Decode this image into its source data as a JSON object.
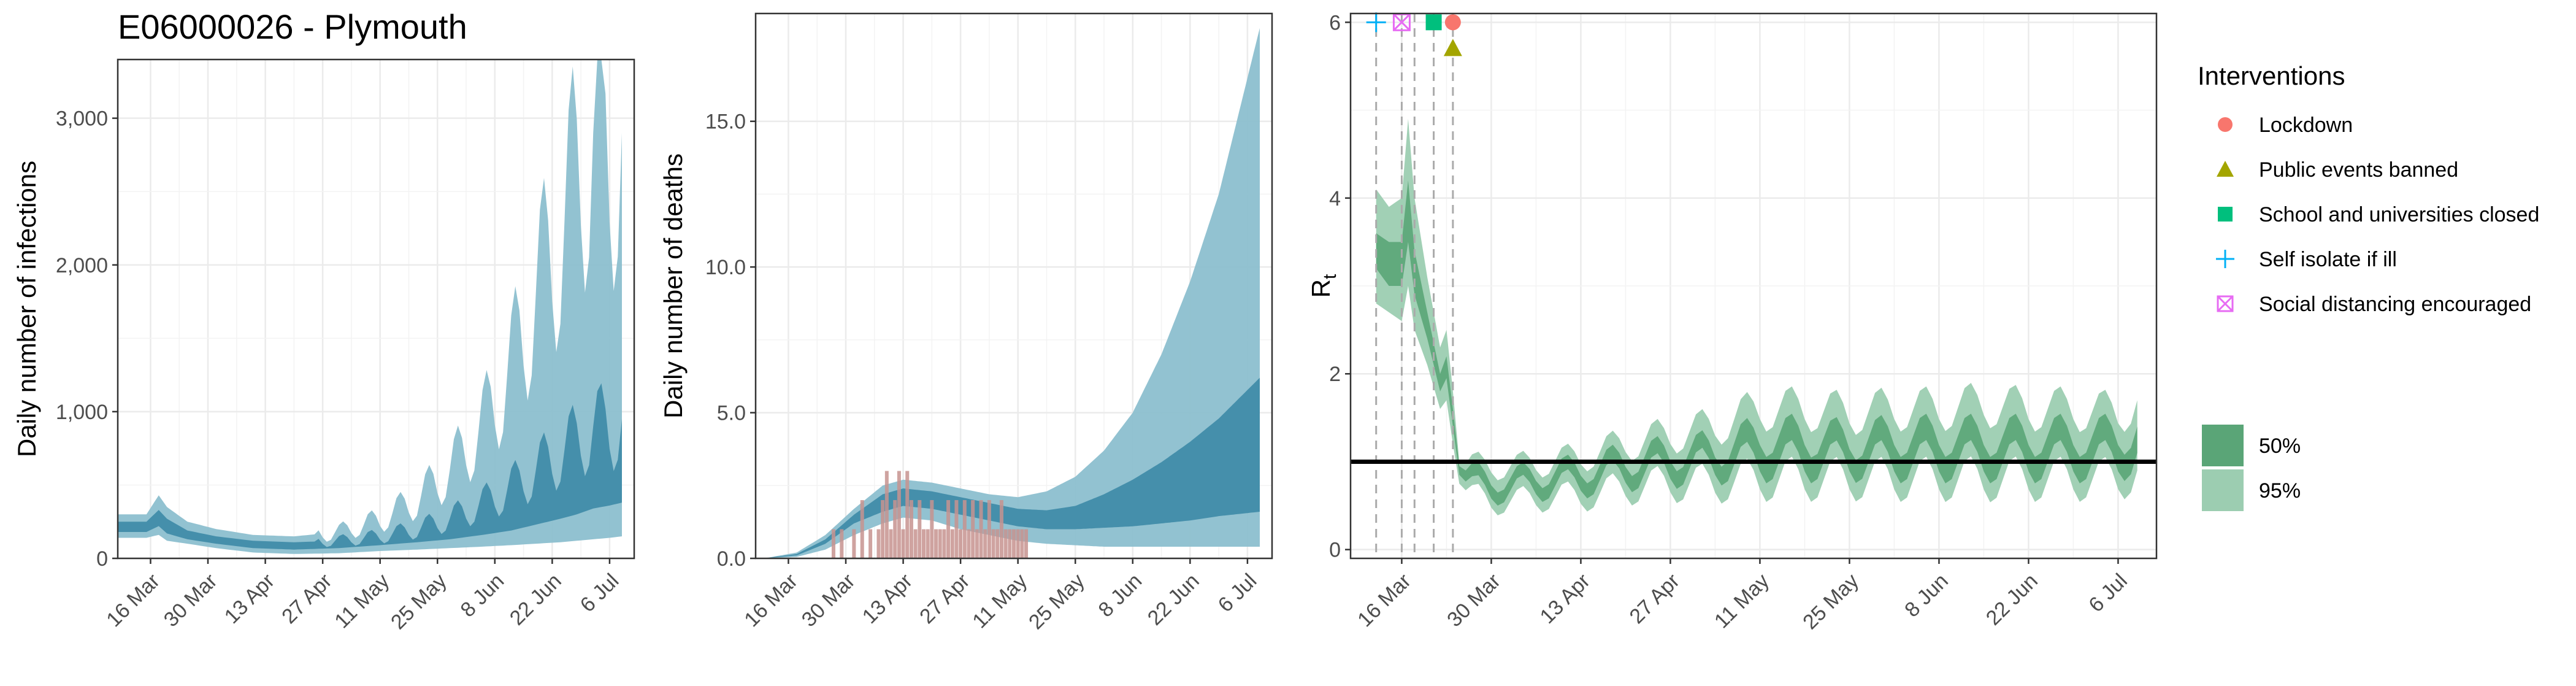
{
  "title": "E06000026 - Plymouth",
  "colors": {
    "blue_light": "#8cbfcf",
    "blue_dark": "#3d8aa6",
    "green_light": "#9ccdb1",
    "green_dark": "#5aa577",
    "observed_bar": "#c7938f",
    "lockdown": "#f8766d",
    "public_events": "#a3a500",
    "schools": "#00bf7d",
    "self_isolate": "#00b0f6",
    "social_distancing": "#e76bf3"
  },
  "x_tick_labels": [
    "16 Mar",
    "30 Mar",
    "13 Apr",
    "27 Apr",
    "11 May",
    "25 May",
    "8 Jun",
    "22 Jun",
    "6 Jul"
  ],
  "chart_data": [
    {
      "type": "area",
      "panel": "infections",
      "ylabel": "Daily number of infections",
      "xlabel": "",
      "x_range": [
        "2020-03-08",
        "2020-07-12"
      ],
      "ylim": [
        0,
        3400
      ],
      "y_ticks": [
        0,
        1000,
        2000,
        3000
      ],
      "y_tick_labels": [
        "0",
        "1,000",
        "2,000",
        "3,000"
      ],
      "grid": true,
      "start_date": "2020-03-08",
      "end_date": "2020-07-09",
      "series": [
        {
          "name": "95%",
          "x": [
            "2020-03-08",
            "2020-03-15",
            "2020-03-18",
            "2020-03-20",
            "2020-03-25",
            "2020-04-01",
            "2020-04-10",
            "2020-04-20",
            "2020-05-01",
            "2020-05-11",
            "2020-05-20",
            "2020-05-28",
            "2020-06-05",
            "2020-06-12",
            "2020-06-18",
            "2020-06-24",
            "2020-06-28",
            "2020-07-02",
            "2020-07-06",
            "2020-07-09"
          ],
          "lower": [
            140,
            140,
            160,
            120,
            100,
            70,
            40,
            30,
            35,
            50,
            60,
            70,
            80,
            90,
            100,
            110,
            120,
            130,
            140,
            150
          ],
          "upper": [
            300,
            300,
            430,
            350,
            250,
            200,
            160,
            150,
            180,
            260,
            400,
            600,
            900,
            1300,
            1800,
            2200,
            2600,
            2900,
            2700,
            2900
          ]
        },
        {
          "name": "50%",
          "x": [
            "2020-03-08",
            "2020-03-15",
            "2020-03-18",
            "2020-03-20",
            "2020-03-25",
            "2020-04-01",
            "2020-04-10",
            "2020-04-20",
            "2020-05-01",
            "2020-05-11",
            "2020-05-20",
            "2020-05-28",
            "2020-06-05",
            "2020-06-12",
            "2020-06-18",
            "2020-06-24",
            "2020-06-28",
            "2020-07-02",
            "2020-07-06",
            "2020-07-09"
          ],
          "lower": [
            180,
            180,
            220,
            170,
            130,
            100,
            70,
            60,
            70,
            90,
            110,
            130,
            160,
            190,
            230,
            270,
            300,
            340,
            360,
            380
          ],
          "upper": [
            250,
            250,
            330,
            270,
            190,
            150,
            120,
            110,
            120,
            150,
            200,
            270,
            370,
            480,
            600,
            720,
            800,
            900,
            880,
            950
          ]
        }
      ]
    },
    {
      "type": "area",
      "panel": "deaths",
      "ylabel": "Daily number of deaths",
      "xlabel": "",
      "x_range": [
        "2020-03-08",
        "2020-07-12"
      ],
      "ylim": [
        0,
        18.7
      ],
      "y_ticks": [
        0,
        5,
        10,
        15
      ],
      "y_tick_labels": [
        "0.0",
        "5.0",
        "10.0",
        "15.0"
      ],
      "grid": true,
      "series": [
        {
          "name": "95%",
          "x": [
            "2020-03-10",
            "2020-03-18",
            "2020-03-25",
            "2020-04-01",
            "2020-04-08",
            "2020-04-13",
            "2020-04-20",
            "2020-04-27",
            "2020-05-04",
            "2020-05-11",
            "2020-05-18",
            "2020-05-25",
            "2020-06-01",
            "2020-06-08",
            "2020-06-15",
            "2020-06-22",
            "2020-06-29",
            "2020-07-09"
          ],
          "lower": [
            0,
            0.05,
            0.3,
            0.8,
            1.2,
            1.4,
            1.3,
            1.0,
            0.8,
            0.6,
            0.5,
            0.45,
            0.4,
            0.4,
            0.4,
            0.4,
            0.4,
            0.4
          ],
          "upper": [
            0,
            0.2,
            0.8,
            1.7,
            2.5,
            2.7,
            2.6,
            2.4,
            2.2,
            2.1,
            2.3,
            2.8,
            3.7,
            5.0,
            7.0,
            9.5,
            12.5,
            18.2
          ]
        },
        {
          "name": "50%",
          "x": [
            "2020-03-10",
            "2020-03-18",
            "2020-03-25",
            "2020-04-01",
            "2020-04-08",
            "2020-04-13",
            "2020-04-20",
            "2020-04-27",
            "2020-05-04",
            "2020-05-11",
            "2020-05-18",
            "2020-05-25",
            "2020-06-01",
            "2020-06-08",
            "2020-06-15",
            "2020-06-22",
            "2020-06-29",
            "2020-07-09"
          ],
          "lower": [
            0,
            0.1,
            0.5,
            1.2,
            1.6,
            1.8,
            1.7,
            1.5,
            1.3,
            1.1,
            1.0,
            1.0,
            1.05,
            1.1,
            1.2,
            1.3,
            1.45,
            1.6
          ],
          "upper": [
            0,
            0.15,
            0.65,
            1.5,
            2.2,
            2.4,
            2.3,
            2.1,
            1.9,
            1.7,
            1.65,
            1.8,
            2.2,
            2.7,
            3.3,
            4.0,
            4.8,
            6.2
          ]
        }
      ],
      "observed": {
        "x": [
          "2020-03-27",
          "2020-03-29",
          "2020-04-01",
          "2020-04-03",
          "2020-04-05",
          "2020-04-07",
          "2020-04-08",
          "2020-04-09",
          "2020-04-10",
          "2020-04-11",
          "2020-04-12",
          "2020-04-13",
          "2020-04-14",
          "2020-04-15",
          "2020-04-16",
          "2020-04-17",
          "2020-04-18",
          "2020-04-19",
          "2020-04-20",
          "2020-04-21",
          "2020-04-22",
          "2020-04-23",
          "2020-04-24",
          "2020-04-25",
          "2020-04-26",
          "2020-04-27",
          "2020-04-28",
          "2020-04-29",
          "2020-04-30",
          "2020-05-01",
          "2020-05-02",
          "2020-05-03",
          "2020-05-04",
          "2020-05-05",
          "2020-05-06",
          "2020-05-07",
          "2020-05-08",
          "2020-05-09",
          "2020-05-10",
          "2020-05-11",
          "2020-05-12",
          "2020-05-13"
        ],
        "values": [
          1,
          1,
          1,
          2,
          1,
          1,
          2,
          3,
          1,
          2,
          3,
          1,
          3,
          2,
          1,
          2,
          1,
          1,
          2,
          1,
          1,
          1,
          2,
          1,
          2,
          1,
          2,
          1,
          2,
          1,
          2,
          1,
          2,
          1,
          1,
          2,
          1,
          1,
          1,
          1,
          1,
          1
        ]
      }
    },
    {
      "type": "line",
      "panel": "Rt",
      "ylabel": "Rt",
      "xlabel": "",
      "x_range": [
        "2020-03-08",
        "2020-07-12"
      ],
      "ylim": [
        -0.1,
        6.1
      ],
      "y_ticks": [
        0,
        2,
        4,
        6
      ],
      "y_tick_labels": [
        "0",
        "2",
        "4",
        "6"
      ],
      "grid": true,
      "reference_line": 1,
      "intervention_dates": [
        "2020-03-12",
        "2020-03-16",
        "2020-03-18",
        "2020-03-21",
        "2020-03-24"
      ],
      "series": [
        {
          "name": "95%",
          "x": [
            "2020-03-12",
            "2020-03-14",
            "2020-03-16",
            "2020-03-17",
            "2020-03-18",
            "2020-03-20",
            "2020-03-22",
            "2020-03-23",
            "2020-03-24",
            "2020-03-25",
            "2020-03-27",
            "2020-03-30",
            "2020-04-03",
            "2020-04-08",
            "2020-04-13",
            "2020-04-20",
            "2020-04-27",
            "2020-05-04",
            "2020-05-11",
            "2020-05-18",
            "2020-05-25",
            "2020-06-01",
            "2020-06-08",
            "2020-06-15",
            "2020-06-22",
            "2020-06-29",
            "2020-07-06",
            "2020-07-09"
          ],
          "lower": [
            2.8,
            2.7,
            2.6,
            3.0,
            2.5,
            2.1,
            1.6,
            1.7,
            1.2,
            0.75,
            0.6,
            0.55,
            0.55,
            0.6,
            0.6,
            0.7,
            0.75,
            0.75,
            0.8,
            0.8,
            0.8,
            0.8,
            0.8,
            0.8,
            0.8,
            0.8,
            0.8,
            0.9
          ],
          "upper": [
            4.1,
            3.9,
            4.0,
            4.9,
            4.0,
            3.1,
            2.3,
            2.5,
            1.8,
            1.0,
            0.95,
            0.95,
            0.95,
            1.0,
            1.05,
            1.2,
            1.3,
            1.4,
            1.6,
            1.6,
            1.55,
            1.6,
            1.6,
            1.65,
            1.6,
            1.6,
            1.55,
            1.7
          ]
        },
        {
          "name": "50%",
          "x": [
            "2020-03-12",
            "2020-03-14",
            "2020-03-16",
            "2020-03-17",
            "2020-03-18",
            "2020-03-20",
            "2020-03-22",
            "2020-03-23",
            "2020-03-24",
            "2020-03-25",
            "2020-03-27",
            "2020-03-30",
            "2020-04-03",
            "2020-04-08",
            "2020-04-13",
            "2020-04-20",
            "2020-04-27",
            "2020-05-04",
            "2020-05-11",
            "2020-05-18",
            "2020-05-25",
            "2020-06-01",
            "2020-06-08",
            "2020-06-15",
            "2020-06-22",
            "2020-06-29",
            "2020-07-06",
            "2020-07-09"
          ],
          "lower": [
            3.2,
            3.0,
            3.0,
            3.5,
            2.9,
            2.4,
            1.8,
            1.95,
            1.4,
            0.85,
            0.7,
            0.65,
            0.68,
            0.72,
            0.75,
            0.85,
            0.9,
            0.95,
            1.0,
            1.0,
            1.0,
            1.0,
            1.0,
            1.0,
            1.0,
            1.0,
            1.0,
            1.1
          ],
          "upper": [
            3.6,
            3.5,
            3.5,
            4.2,
            3.4,
            2.7,
            2.0,
            2.2,
            1.6,
            0.95,
            0.85,
            0.8,
            0.82,
            0.88,
            0.92,
            1.03,
            1.1,
            1.15,
            1.3,
            1.3,
            1.25,
            1.3,
            1.3,
            1.3,
            1.3,
            1.3,
            1.3,
            1.4
          ]
        }
      ]
    }
  ],
  "legend": {
    "title": "Interventions",
    "position": "right",
    "items": [
      {
        "label": "Lockdown",
        "shape": "circle",
        "color": "#f8766d",
        "date": "2020-03-24"
      },
      {
        "label": "Public events banned",
        "shape": "triangle",
        "color": "#a3a500",
        "date": "2020-03-24"
      },
      {
        "label": "School and universities closed",
        "shape": "square",
        "color": "#00bf7d",
        "date": "2020-03-21"
      },
      {
        "label": "Self isolate if ill",
        "shape": "plus",
        "color": "#00b0f6",
        "date": "2020-03-12"
      },
      {
        "label": "Social distancing encouraged",
        "shape": "boxx",
        "color": "#e76bf3",
        "date": "2020-03-16"
      }
    ],
    "ci_items": [
      {
        "label": "50%",
        "color": "#5aa577"
      },
      {
        "label": "95%",
        "color": "#9ccdb1"
      }
    ]
  }
}
